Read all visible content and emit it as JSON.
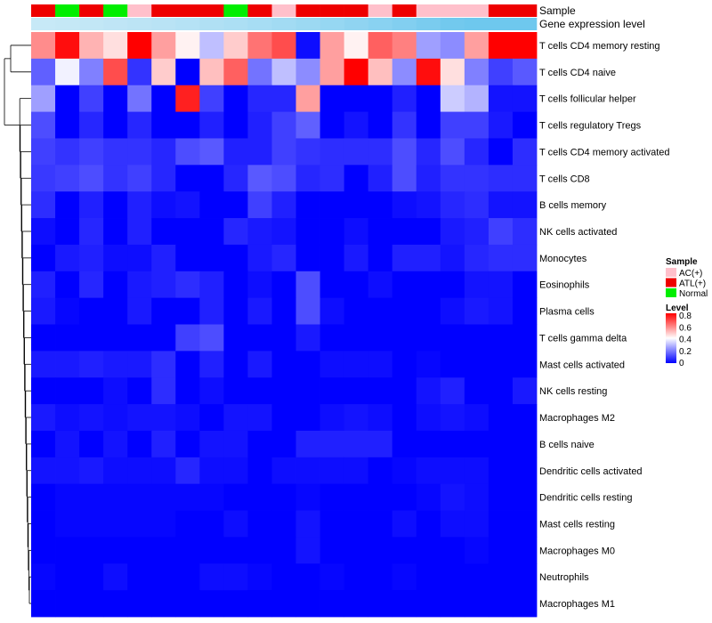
{
  "chart_data": {
    "type": "heatmap",
    "annotation_titles": {
      "sample": "Sample",
      "expression": "Gene expression level"
    },
    "sample_groups": [
      "ATL(+)",
      "Normal",
      "ATL(+)",
      "Normal",
      "AC(+)",
      "ATL(+)",
      "ATL(+)",
      "ATL(+)",
      "Normal",
      "ATL(+)",
      "AC(+)",
      "ATL(+)",
      "ATL(+)",
      "ATL(+)",
      "AC(+)",
      "ATL(+)",
      "AC(+)",
      "AC(+)",
      "AC(+)",
      "ATL(+)",
      "ATL(+)"
    ],
    "expression_level": [
      0.1,
      0.12,
      0.14,
      0.16,
      0.18,
      0.2,
      0.23,
      0.26,
      0.29,
      0.32,
      0.36,
      0.4,
      0.44,
      0.48,
      0.53,
      0.58,
      0.63,
      0.69,
      0.75,
      0.82,
      0.9
    ],
    "rows": [
      "T cells CD4 memory resting",
      "T cells CD4 naive",
      "T cells follicular helper",
      "T cells regulatory  Tregs",
      "T cells CD4 memory activated",
      "T cells CD8",
      "B cells memory",
      "NK cells activated",
      "Monocytes",
      "Eosinophils",
      "Plasma cells",
      "T cells gamma delta",
      "Mast cells activated",
      "NK cells resting",
      "Macrophages M2",
      "B cells naive",
      "Dendritic cells activated",
      "Dendritic cells resting",
      "Mast cells resting",
      "Macrophages M0",
      "Neutrophils",
      "Macrophages M1"
    ],
    "values": [
      [
        0.58,
        0.78,
        0.52,
        0.45,
        0.8,
        0.55,
        0.42,
        0.3,
        0.48,
        0.62,
        0.68,
        0.02,
        0.55,
        0.42,
        0.65,
        0.6,
        0.25,
        0.22,
        0.55,
        0.8,
        0.8
      ],
      [
        0.15,
        0.38,
        0.2,
        0.68,
        0.08,
        0.48,
        0.0,
        0.5,
        0.65,
        0.18,
        0.3,
        0.22,
        0.55,
        0.8,
        0.5,
        0.22,
        0.78,
        0.45,
        0.2,
        0.1,
        0.14
      ],
      [
        0.25,
        0.0,
        0.1,
        0.0,
        0.18,
        0.0,
        0.75,
        0.1,
        0.0,
        0.06,
        0.06,
        0.55,
        0.0,
        0.0,
        0.0,
        0.05,
        0.0,
        0.32,
        0.28,
        0.03,
        0.03
      ],
      [
        0.12,
        0.0,
        0.06,
        0.0,
        0.06,
        0.0,
        0.0,
        0.05,
        0.0,
        0.05,
        0.1,
        0.15,
        0.0,
        0.03,
        0.0,
        0.08,
        0.0,
        0.1,
        0.1,
        0.04,
        0.0
      ],
      [
        0.1,
        0.08,
        0.1,
        0.08,
        0.08,
        0.06,
        0.12,
        0.14,
        0.05,
        0.05,
        0.1,
        0.08,
        0.07,
        0.07,
        0.07,
        0.12,
        0.06,
        0.12,
        0.06,
        0.0,
        0.07
      ],
      [
        0.09,
        0.1,
        0.12,
        0.08,
        0.1,
        0.06,
        0.0,
        0.0,
        0.06,
        0.14,
        0.12,
        0.06,
        0.07,
        0.0,
        0.05,
        0.12,
        0.05,
        0.08,
        0.08,
        0.07,
        0.07
      ],
      [
        0.07,
        0.0,
        0.05,
        0.0,
        0.05,
        0.02,
        0.03,
        0.0,
        0.0,
        0.1,
        0.05,
        0.0,
        0.0,
        0.0,
        0.0,
        0.02,
        0.03,
        0.06,
        0.07,
        0.03,
        0.03
      ],
      [
        0.02,
        0.0,
        0.06,
        0.0,
        0.05,
        0.0,
        0.0,
        0.0,
        0.06,
        0.04,
        0.03,
        0.0,
        0.0,
        0.02,
        0.0,
        0.0,
        0.0,
        0.04,
        0.05,
        0.1,
        0.07
      ],
      [
        0.0,
        0.04,
        0.05,
        0.02,
        0.02,
        0.05,
        0.0,
        0.0,
        0.0,
        0.04,
        0.06,
        0.0,
        0.0,
        0.04,
        0.0,
        0.05,
        0.05,
        0.03,
        0.06,
        0.07,
        0.07
      ],
      [
        0.05,
        0.0,
        0.06,
        0.0,
        0.04,
        0.05,
        0.07,
        0.05,
        0.0,
        0.02,
        0.0,
        0.12,
        0.0,
        0.0,
        0.02,
        0.0,
        0.0,
        0.0,
        0.03,
        0.03,
        0.0
      ],
      [
        0.04,
        0.01,
        0.0,
        0.0,
        0.04,
        0.0,
        0.0,
        0.05,
        0.0,
        0.04,
        0.0,
        0.12,
        0.02,
        0.0,
        0.0,
        0.0,
        0.0,
        0.02,
        0.04,
        0.03,
        0.0
      ],
      [
        0.0,
        0.0,
        0.0,
        0.0,
        0.0,
        0.0,
        0.1,
        0.12,
        0.0,
        0.0,
        0.0,
        0.04,
        0.0,
        0.0,
        0.0,
        0.0,
        0.0,
        0.0,
        0.0,
        0.0,
        0.0
      ],
      [
        0.04,
        0.04,
        0.05,
        0.04,
        0.04,
        0.07,
        0.0,
        0.05,
        0.0,
        0.04,
        0.0,
        0.0,
        0.02,
        0.02,
        0.02,
        0.0,
        0.01,
        0.0,
        0.0,
        0.0,
        0.0
      ],
      [
        0.0,
        0.0,
        0.0,
        0.02,
        0.0,
        0.07,
        0.0,
        0.02,
        0.0,
        0.0,
        0.0,
        0.0,
        0.0,
        0.0,
        0.0,
        0.0,
        0.03,
        0.05,
        0.0,
        0.0,
        0.04
      ],
      [
        0.04,
        0.02,
        0.03,
        0.02,
        0.03,
        0.03,
        0.02,
        0.0,
        0.03,
        0.03,
        0.0,
        0.0,
        0.02,
        0.03,
        0.02,
        0.0,
        0.02,
        0.03,
        0.02,
        0.0,
        0.0
      ],
      [
        0.0,
        0.03,
        0.0,
        0.03,
        0.0,
        0.05,
        0.0,
        0.03,
        0.03,
        0.0,
        0.0,
        0.05,
        0.05,
        0.05,
        0.05,
        0.0,
        0.0,
        0.0,
        0.0,
        0.0,
        0.0
      ],
      [
        0.03,
        0.03,
        0.04,
        0.02,
        0.02,
        0.02,
        0.06,
        0.02,
        0.02,
        0.0,
        0.02,
        0.02,
        0.02,
        0.02,
        0.0,
        0.01,
        0.02,
        0.02,
        0.02,
        0.0,
        0.0
      ],
      [
        0.0,
        0.01,
        0.01,
        0.01,
        0.01,
        0.01,
        0.01,
        0.01,
        0.0,
        0.0,
        0.0,
        0.01,
        0.0,
        0.0,
        0.0,
        0.0,
        0.01,
        0.03,
        0.02,
        0.0,
        0.0
      ],
      [
        0.0,
        0.01,
        0.01,
        0.01,
        0.01,
        0.01,
        0.0,
        0.0,
        0.02,
        0.0,
        0.0,
        0.03,
        0.0,
        0.0,
        0.0,
        0.02,
        0.0,
        0.02,
        0.02,
        0.0,
        0.0
      ],
      [
        0.0,
        0.0,
        0.0,
        0.0,
        0.0,
        0.0,
        0.0,
        0.0,
        0.0,
        0.0,
        0.0,
        0.03,
        0.0,
        0.0,
        0.0,
        0.0,
        0.0,
        0.0,
        0.01,
        0.0,
        0.0
      ],
      [
        0.01,
        0.0,
        0.0,
        0.02,
        0.0,
        0.0,
        0.0,
        0.02,
        0.02,
        0.01,
        0.0,
        0.0,
        0.01,
        0.0,
        0.0,
        0.01,
        0.0,
        0.0,
        0.0,
        0.0,
        0.0
      ],
      [
        0.0,
        0.0,
        0.0,
        0.0,
        0.0,
        0.0,
        0.0,
        0.0,
        0.0,
        0.0,
        0.0,
        0.0,
        0.0,
        0.0,
        0.0,
        0.0,
        0.0,
        0.0,
        0.0,
        0.0,
        0.0
      ]
    ],
    "legend_sample": {
      "title": "Sample",
      "items": [
        {
          "label": "AC(+)",
          "color": "#FFC0CB"
        },
        {
          "label": "ATL(+)",
          "color": "#EE0000"
        },
        {
          "label": "Normal",
          "color": "#00EE00"
        }
      ]
    },
    "legend_level": {
      "title": "Level",
      "ticks": [
        "0.8",
        "0.6",
        "0.4",
        "0.2",
        "0"
      ],
      "range": [
        0,
        0.8
      ]
    },
    "colors": {
      "low": "#0000FF",
      "mid": "#FFFFFF",
      "high": "#FF0000",
      "expr_low": "#D6EEF8",
      "expr_high": "#6EC8EE"
    }
  }
}
